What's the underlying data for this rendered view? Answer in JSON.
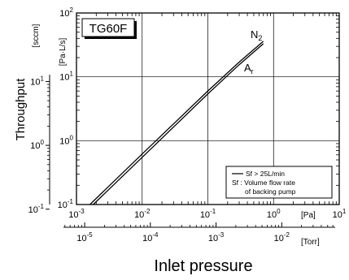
{
  "chart_data": {
    "type": "line",
    "title": "",
    "box_title": "TG60F",
    "xlabel": "Inlet pressure",
    "ylabel": "Throughput",
    "x_scale": "log",
    "y_scale": "log",
    "xlim": [
      0.001,
      10
    ],
    "ylim": [
      0.1,
      100
    ],
    "grid": true,
    "x_tick_labels": [
      {
        "mantissa": "10",
        "exp": "-3"
      },
      {
        "mantissa": "10",
        "exp": "-2"
      },
      {
        "mantissa": "10",
        "exp": "-1"
      },
      {
        "mantissa": "10",
        "exp": "0"
      },
      {
        "mantissa": "10",
        "exp": "1"
      }
    ],
    "x_unit": "[Pa]",
    "x2_tick_labels": [
      {
        "mantissa": "10",
        "exp": "-5"
      },
      {
        "mantissa": "10",
        "exp": "-4"
      },
      {
        "mantissa": "10",
        "exp": "-3"
      },
      {
        "mantissa": "10",
        "exp": "-2"
      }
    ],
    "x2_unit": "[Torr]",
    "x2_tick_values_torr": [
      1e-05,
      0.0001,
      0.001,
      0.01
    ],
    "y_tick_labels": [
      {
        "mantissa": "10",
        "exp": "-1"
      },
      {
        "mantissa": "10",
        "exp": "0"
      },
      {
        "mantissa": "10",
        "exp": "1"
      },
      {
        "mantissa": "10",
        "exp": "2"
      }
    ],
    "y_unit_primary": "[Pa·L/s]",
    "y_unit_secondary": "[sccm]",
    "y2_tick_labels": [
      {
        "mantissa": "10",
        "exp": "-1"
      },
      {
        "mantissa": "10",
        "exp": "0"
      },
      {
        "mantissa": "10",
        "exp": "1"
      }
    ],
    "y2_tick_values_pals": [
      0.0845,
      0.845,
      8.45
    ],
    "series": [
      {
        "name": "N₂",
        "x": [
          0.0018,
          0.01,
          0.1,
          0.3,
          0.7
        ],
        "y": [
          0.1,
          0.55,
          5.4,
          15.5,
          33
        ]
      },
      {
        "name": "Ar",
        "x": [
          0.0016,
          0.01,
          0.1,
          0.3,
          0.7
        ],
        "y": [
          0.1,
          0.62,
          6.0,
          17,
          36
        ]
      }
    ],
    "series_labels": {
      "n2": {
        "main": "N",
        "sub": "2"
      },
      "ar": {
        "main": "A",
        "sub": "r"
      }
    },
    "legend": {
      "position": "bottom-right",
      "line_label": "Sf > 25L/min",
      "note_line1": "Sf : Volume flow rate",
      "note_line2": "of backing pump"
    }
  }
}
